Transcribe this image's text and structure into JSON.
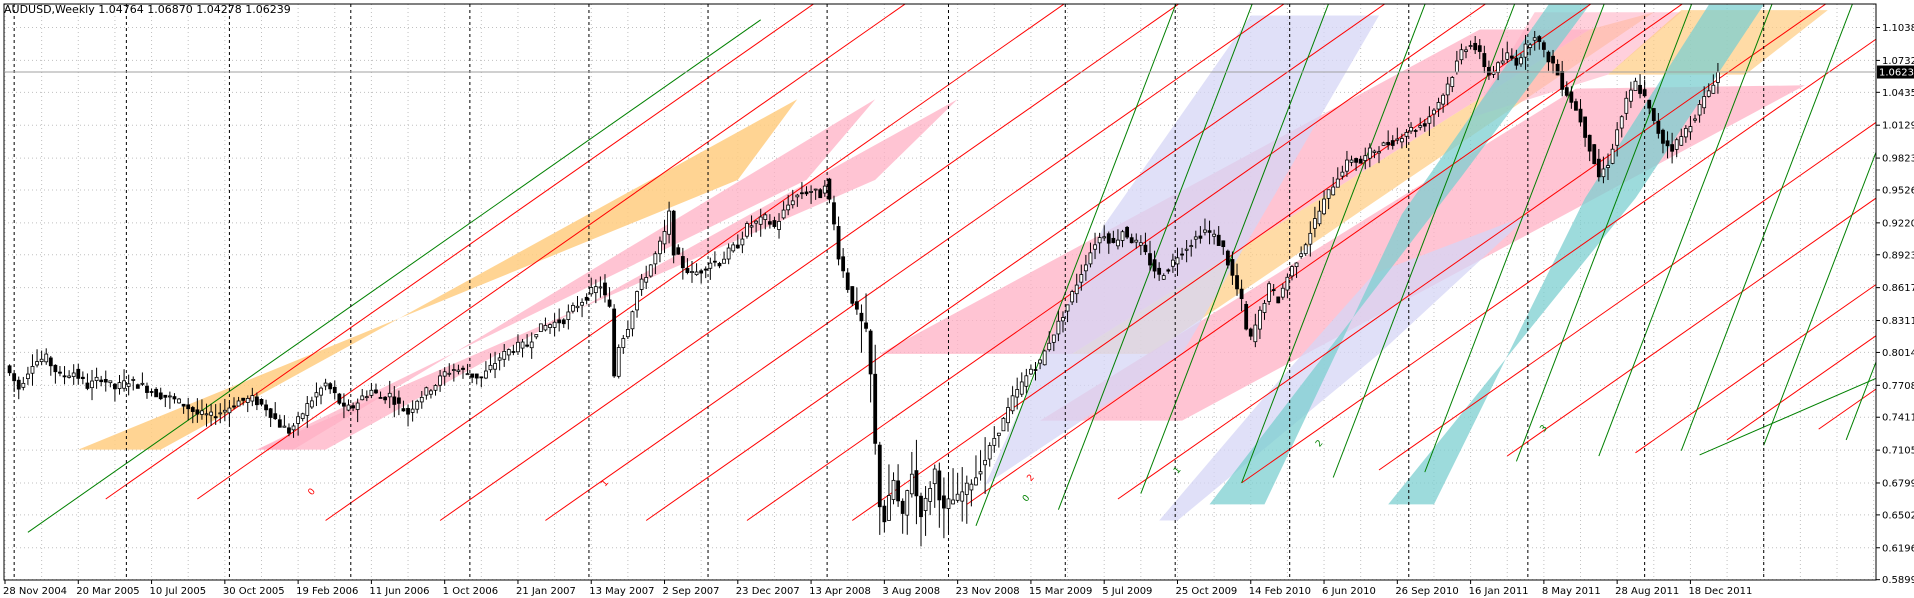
{
  "chart_data": {
    "type": "candlestick",
    "title": "AUDUSD,Weekly  1.04764 1.06870 1.04278 1.06239",
    "symbol": "AUDUSD",
    "timeframe": "Weekly",
    "last_bar": {
      "open": 1.04764,
      "high": 1.0687,
      "low": 1.04278,
      "close": 1.06239
    },
    "current_price_label": "1.06239",
    "current_price": 1.06239,
    "ylim": [
      0.5896,
      1.1257
    ],
    "y_ticks": [
      "1.10380",
      "1.07320",
      "1.04350",
      "1.01290",
      "0.98230",
      "0.95260",
      "0.92200",
      "0.89230",
      "0.86170",
      "0.83110",
      "0.80140",
      "0.77080",
      "0.74110",
      "0.71050",
      "0.67990",
      "0.65020",
      "0.61960",
      "0.58990"
    ],
    "x_ticks": [
      {
        "label": "28 Nov 2004",
        "t": 0
      },
      {
        "label": "20 Mar 2005",
        "t": 16
      },
      {
        "label": "10 Jul 2005",
        "t": 32
      },
      {
        "label": "30 Oct 2005",
        "t": 48
      },
      {
        "label": "19 Feb 2006",
        "t": 64
      },
      {
        "label": "11 Jun 2006",
        "t": 80
      },
      {
        "label": "1 Oct 2006",
        "t": 96
      },
      {
        "label": "21 Jan 2007",
        "t": 112
      },
      {
        "label": "13 May 2007",
        "t": 128
      },
      {
        "label": "2 Sep 2007",
        "t": 144
      },
      {
        "label": "23 Dec 2007",
        "t": 160
      },
      {
        "label": "13 Apr 2008",
        "t": 176
      },
      {
        "label": "3 Aug 2008",
        "t": 192
      },
      {
        "label": "23 Nov 2008",
        "t": 208
      },
      {
        "label": "15 Mar 2009",
        "t": 224
      },
      {
        "label": "5 Jul 2009",
        "t": 240
      },
      {
        "label": "25 Oct 2009",
        "t": 256
      },
      {
        "label": "14 Feb 2010",
        "t": 272
      },
      {
        "label": "6 Jun 2010",
        "t": 288
      },
      {
        "label": "26 Sep 2010",
        "t": 304
      },
      {
        "label": "16 Jan 2011",
        "t": 320
      },
      {
        "label": "8 May 2011",
        "t": 336
      },
      {
        "label": "28 Aug 2011",
        "t": 352
      },
      {
        "label": "18 Dec 2011",
        "t": 368
      }
    ],
    "period_separators_t": [
      2,
      26.5,
      49,
      75.5,
      101.5,
      127.5,
      153.5,
      179.5,
      206,
      231.5,
      255.5,
      280.5,
      306.5,
      332.5,
      358,
      384
    ],
    "close_path": [
      [
        0,
        0.789
      ],
      [
        3,
        0.768
      ],
      [
        6,
        0.792
      ],
      [
        9,
        0.796
      ],
      [
        12,
        0.779
      ],
      [
        15,
        0.783
      ],
      [
        18,
        0.77
      ],
      [
        21,
        0.778
      ],
      [
        24,
        0.768
      ],
      [
        27,
        0.775
      ],
      [
        30,
        0.77
      ],
      [
        33,
        0.763
      ],
      [
        36,
        0.759
      ],
      [
        39,
        0.753
      ],
      [
        42,
        0.744
      ],
      [
        45,
        0.742
      ],
      [
        48,
        0.748
      ],
      [
        51,
        0.756
      ],
      [
        54,
        0.758
      ],
      [
        57,
        0.75
      ],
      [
        60,
        0.734
      ],
      [
        62,
        0.728
      ],
      [
        64,
        0.738
      ],
      [
        66,
        0.752
      ],
      [
        68,
        0.763
      ],
      [
        70,
        0.772
      ],
      [
        72,
        0.762
      ],
      [
        74,
        0.748
      ],
      [
        76,
        0.751
      ],
      [
        78,
        0.76
      ],
      [
        80,
        0.766
      ],
      [
        82,
        0.759
      ],
      [
        84,
        0.762
      ],
      [
        86,
        0.752
      ],
      [
        88,
        0.745
      ],
      [
        90,
        0.758
      ],
      [
        92,
        0.765
      ],
      [
        94,
        0.772
      ],
      [
        96,
        0.782
      ],
      [
        98,
        0.786
      ],
      [
        100,
        0.784
      ],
      [
        102,
        0.78
      ],
      [
        104,
        0.778
      ],
      [
        106,
        0.787
      ],
      [
        108,
        0.797
      ],
      [
        110,
        0.803
      ],
      [
        112,
        0.807
      ],
      [
        114,
        0.808
      ],
      [
        116,
        0.822
      ],
      [
        118,
        0.826
      ],
      [
        120,
        0.829
      ],
      [
        122,
        0.832
      ],
      [
        124,
        0.842
      ],
      [
        126,
        0.85
      ],
      [
        128,
        0.858
      ],
      [
        130,
        0.864
      ],
      [
        132,
        0.842
      ],
      [
        133,
        0.78
      ],
      [
        134,
        0.808
      ],
      [
        136,
        0.826
      ],
      [
        138,
        0.858
      ],
      [
        140,
        0.874
      ],
      [
        142,
        0.892
      ],
      [
        144,
        0.912
      ],
      [
        145,
        0.93
      ],
      [
        146,
        0.896
      ],
      [
        148,
        0.882
      ],
      [
        150,
        0.874
      ],
      [
        152,
        0.878
      ],
      [
        154,
        0.886
      ],
      [
        156,
        0.885
      ],
      [
        158,
        0.895
      ],
      [
        160,
        0.902
      ],
      [
        162,
        0.918
      ],
      [
        164,
        0.922
      ],
      [
        166,
        0.926
      ],
      [
        168,
        0.918
      ],
      [
        170,
        0.932
      ],
      [
        172,
        0.945
      ],
      [
        174,
        0.95
      ],
      [
        176,
        0.952
      ],
      [
        178,
        0.948
      ],
      [
        179,
        0.96
      ],
      [
        180,
        0.942
      ],
      [
        181,
        0.92
      ],
      [
        182,
        0.892
      ],
      [
        184,
        0.862
      ],
      [
        186,
        0.838
      ],
      [
        188,
        0.82
      ],
      [
        189,
        0.78
      ],
      [
        190,
        0.715
      ],
      [
        191,
        0.66
      ],
      [
        192,
        0.645
      ],
      [
        193,
        0.665
      ],
      [
        194,
        0.682
      ],
      [
        195,
        0.662
      ],
      [
        196,
        0.648
      ],
      [
        197,
        0.672
      ],
      [
        198,
        0.69
      ],
      [
        199,
        0.668
      ],
      [
        200,
        0.652
      ],
      [
        201,
        0.663
      ],
      [
        202,
        0.677
      ],
      [
        203,
        0.692
      ],
      [
        204,
        0.668
      ],
      [
        205,
        0.654
      ],
      [
        206,
        0.662
      ],
      [
        208,
        0.666
      ],
      [
        210,
        0.676
      ],
      [
        212,
        0.686
      ],
      [
        214,
        0.702
      ],
      [
        216,
        0.722
      ],
      [
        218,
        0.738
      ],
      [
        220,
        0.758
      ],
      [
        222,
        0.772
      ],
      [
        224,
        0.786
      ],
      [
        226,
        0.792
      ],
      [
        228,
        0.812
      ],
      [
        230,
        0.828
      ],
      [
        232,
        0.846
      ],
      [
        234,
        0.866
      ],
      [
        236,
        0.886
      ],
      [
        238,
        0.904
      ],
      [
        240,
        0.912
      ],
      [
        242,
        0.902
      ],
      [
        244,
        0.915
      ],
      [
        246,
        0.906
      ],
      [
        248,
        0.9
      ],
      [
        250,
        0.885
      ],
      [
        252,
        0.872
      ],
      [
        254,
        0.88
      ],
      [
        256,
        0.892
      ],
      [
        258,
        0.9
      ],
      [
        260,
        0.908
      ],
      [
        262,
        0.915
      ],
      [
        264,
        0.909
      ],
      [
        266,
        0.898
      ],
      [
        268,
        0.872
      ],
      [
        270,
        0.848
      ],
      [
        271,
        0.822
      ],
      [
        272,
        0.814
      ],
      [
        274,
        0.838
      ],
      [
        276,
        0.862
      ],
      [
        278,
        0.85
      ],
      [
        280,
        0.872
      ],
      [
        282,
        0.888
      ],
      [
        284,
        0.904
      ],
      [
        286,
        0.924
      ],
      [
        288,
        0.942
      ],
      [
        290,
        0.958
      ],
      [
        292,
        0.972
      ],
      [
        294,
        0.982
      ],
      [
        296,
        0.978
      ],
      [
        298,
        0.988
      ],
      [
        300,
        0.992
      ],
      [
        302,
        0.996
      ],
      [
        304,
        1.0
      ],
      [
        306,
        1.008
      ],
      [
        308,
        1.01
      ],
      [
        310,
        1.015
      ],
      [
        312,
        1.028
      ],
      [
        314,
        1.042
      ],
      [
        316,
        1.06
      ],
      [
        318,
        1.082
      ],
      [
        320,
        1.09
      ],
      [
        322,
        1.078
      ],
      [
        324,
        1.06
      ],
      [
        326,
        1.068
      ],
      [
        328,
        1.078
      ],
      [
        330,
        1.072
      ],
      [
        332,
        1.085
      ],
      [
        334,
        1.098
      ],
      [
        336,
        1.08
      ],
      [
        338,
        1.07
      ],
      [
        340,
        1.05
      ],
      [
        342,
        1.036
      ],
      [
        344,
        1.018
      ],
      [
        346,
        0.992
      ],
      [
        348,
        0.965
      ],
      [
        350,
        0.978
      ],
      [
        352,
        1.008
      ],
      [
        354,
        1.035
      ],
      [
        356,
        1.052
      ],
      [
        358,
        1.038
      ],
      [
        360,
        1.015
      ],
      [
        362,
        0.998
      ],
      [
        364,
        0.992
      ],
      [
        366,
        1.002
      ],
      [
        368,
        1.015
      ],
      [
        370,
        1.03
      ],
      [
        372,
        1.045
      ],
      [
        374,
        1.062
      ]
    ],
    "annotations": [
      {
        "text": "0",
        "t": 67,
        "p": 0.668
      },
      {
        "text": "1",
        "t": 131,
        "p": 0.676
      },
      {
        "text": "2",
        "t": 224,
        "p": 0.681
      },
      {
        "text": "0",
        "t": 223,
        "p": 0.662
      },
      {
        "text": "1",
        "t": 256,
        "p": 0.688
      },
      {
        "text": "2",
        "t": 287,
        "p": 0.713
      },
      {
        "text": "3",
        "t": 336,
        "p": 0.727
      }
    ]
  },
  "colors": {
    "background": "#ffffff",
    "grid": "#c0c0c0",
    "separator": "#000000",
    "red_line": "#ff0000",
    "green_line": "#008000",
    "orange_fill": "#ffcc80",
    "pink_fill": "#ffb0c4",
    "lavender_fill": "#d6d6f5",
    "teal_fill": "#7ccfd0",
    "candle_up": "#ffffff",
    "candle_down": "#000000",
    "price_badge_bg": "#000000"
  }
}
